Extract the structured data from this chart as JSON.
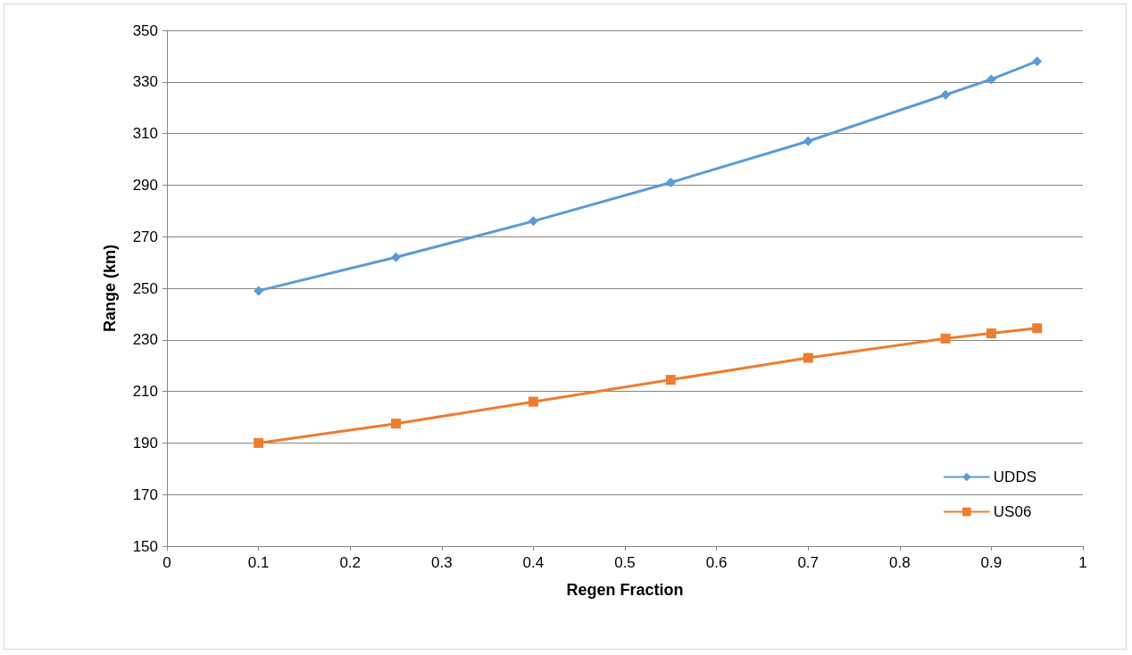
{
  "chart_data": {
    "type": "line",
    "xlabel": "Regen Fraction",
    "ylabel": "Range (km)",
    "x": [
      0.1,
      0.25,
      0.4,
      0.55,
      0.7,
      0.85,
      0.9,
      0.95
    ],
    "series": [
      {
        "name": "UDDS",
        "color": "#5b9bd5",
        "marker": "diamond",
        "values": [
          249,
          262,
          276,
          291,
          307,
          325,
          331,
          338
        ]
      },
      {
        "name": "US06",
        "color": "#ed7d31",
        "marker": "square",
        "values": [
          190,
          197.5,
          206,
          214.5,
          223,
          230.5,
          232.5,
          234.5
        ]
      }
    ],
    "xlim": [
      0,
      1
    ],
    "xticks": [
      0,
      0.1,
      0.2,
      0.3,
      0.4,
      0.5,
      0.6,
      0.7,
      0.8,
      0.9,
      1
    ],
    "ylim": [
      150,
      350
    ],
    "yticks": [
      150,
      170,
      190,
      210,
      230,
      250,
      270,
      290,
      310,
      330,
      350
    ],
    "grid": "y",
    "legend": "bottom right",
    "line_style": "solid"
  }
}
